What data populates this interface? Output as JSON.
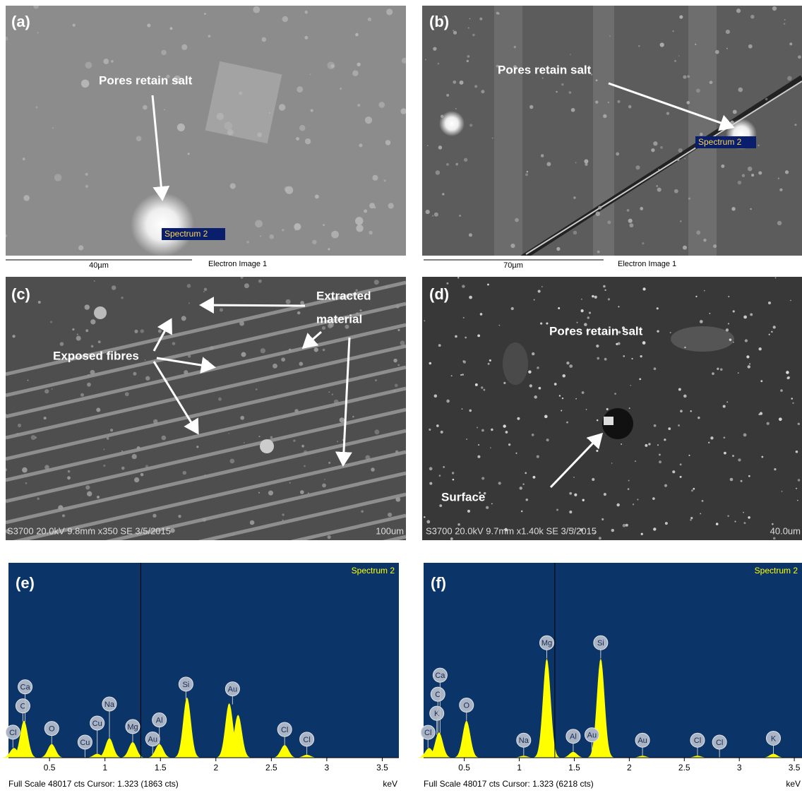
{
  "panels": [
    {
      "label": "(a)",
      "annotations": [
        "Pores retain salt"
      ],
      "tag": "Spectrum 2",
      "scale": "40µm",
      "caption": "Electron Image 1"
    },
    {
      "label": "(b)",
      "annotations": [
        "Pores retain salt"
      ],
      "tag": "Spectrum 2",
      "scale": "70µm",
      "caption": "Electron Image 1"
    },
    {
      "label": "(c)",
      "annotations": [
        "Extracted",
        "material",
        "Exposed fibres"
      ],
      "info": "S3700 20.0kV 9.8mm x350 SE 3/5/2015",
      "scale": "100um"
    },
    {
      "label": "(d)",
      "annotations": [
        "Pores retain salt",
        "Surface"
      ],
      "info": "S3700 20.0kV 9.7mm x1.40k SE 3/5/2015",
      "scale": "40.0um"
    }
  ],
  "spectra": [
    {
      "label": "(e)",
      "title": "Spectrum 2",
      "unit": "keV",
      "footer": "Full Scale 48017 cts Cursor: 1.323  (1863 cts)",
      "cursor": 1.323,
      "xlim": [
        0.13,
        3.65
      ],
      "ylim": [
        0,
        100
      ],
      "xticks": [
        0.5,
        1,
        1.5,
        2,
        2.5,
        3,
        3.5
      ],
      "peaks": [
        {
          "x": 0.18,
          "height": 5
        },
        {
          "x": 0.27,
          "height": 19
        },
        {
          "x": 0.52,
          "height": 7
        },
        {
          "x": 0.93,
          "height": 2
        },
        {
          "x": 1.04,
          "height": 10
        },
        {
          "x": 1.25,
          "height": 8
        },
        {
          "x": 1.49,
          "height": 7
        },
        {
          "x": 1.74,
          "height": 31
        },
        {
          "x": 2.12,
          "height": 28
        },
        {
          "x": 2.2,
          "height": 22
        },
        {
          "x": 2.62,
          "height": 6.5
        },
        {
          "x": 2.82,
          "height": 1.5
        }
      ],
      "labels": [
        {
          "text": "Cl",
          "x": 0.17
        },
        {
          "text": "C",
          "x": 0.26
        },
        {
          "text": "Ca",
          "x": 0.28
        },
        {
          "text": "O",
          "x": 0.52
        },
        {
          "text": "Cu",
          "x": 0.82
        },
        {
          "text": "Cu",
          "x": 0.93
        },
        {
          "text": "Na",
          "x": 1.04
        },
        {
          "text": "Mg",
          "x": 1.25
        },
        {
          "text": "Au",
          "x": 1.43
        },
        {
          "text": "Al",
          "x": 1.49
        },
        {
          "text": "Si",
          "x": 1.73
        },
        {
          "text": "Au",
          "x": 2.15
        },
        {
          "text": "Cl",
          "x": 2.62
        },
        {
          "text": "Cl",
          "x": 2.82
        }
      ]
    },
    {
      "label": "(f)",
      "title": "Spectrum 2",
      "unit": "keV",
      "footer": "Full Scale 48017 cts Cursor: 1.323  (6218 cts)",
      "cursor": 1.323,
      "xlim": [
        0.13,
        3.57
      ],
      "ylim": [
        0,
        100
      ],
      "xticks": [
        0.5,
        1,
        1.5,
        2,
        2.5,
        3,
        3.5
      ],
      "peaks": [
        {
          "x": 0.18,
          "height": 5
        },
        {
          "x": 0.27,
          "height": 13
        },
        {
          "x": 0.52,
          "height": 19
        },
        {
          "x": 1.04,
          "height": 1
        },
        {
          "x": 1.25,
          "height": 51
        },
        {
          "x": 1.49,
          "height": 3
        },
        {
          "x": 1.74,
          "height": 51
        },
        {
          "x": 2.12,
          "height": 1
        },
        {
          "x": 2.62,
          "height": 1
        },
        {
          "x": 3.31,
          "height": 2
        }
      ],
      "labels": [
        {
          "text": "Cl",
          "x": 0.17
        },
        {
          "text": "K",
          "x": 0.25
        },
        {
          "text": "C",
          "x": 0.26
        },
        {
          "text": "Ca",
          "x": 0.28
        },
        {
          "text": "O",
          "x": 0.52
        },
        {
          "text": "Na",
          "x": 1.04
        },
        {
          "text": "Mg",
          "x": 1.25
        },
        {
          "text": "Al",
          "x": 1.49
        },
        {
          "text": "Au",
          "x": 1.66
        },
        {
          "text": "Si",
          "x": 1.74
        },
        {
          "text": "Au",
          "x": 2.12
        },
        {
          "text": "Cl",
          "x": 2.62
        },
        {
          "text": "Cl",
          "x": 2.82
        },
        {
          "text": "K",
          "x": 3.31
        }
      ]
    }
  ]
}
